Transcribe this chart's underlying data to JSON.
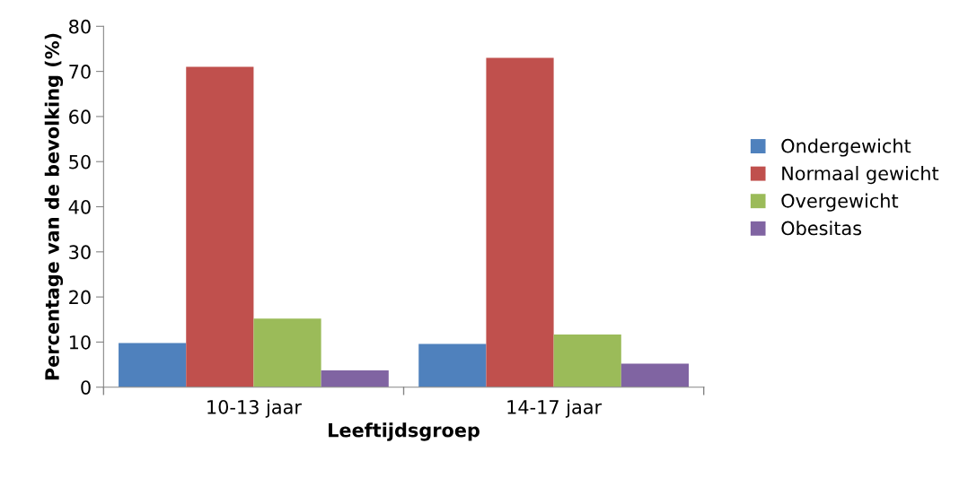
{
  "chart_data": {
    "type": "bar",
    "xlabel": "Leeftijdsgroep",
    "ylabel": "Percentage van de bevolking (%)",
    "categories": [
      "10-13 jaar",
      "14-17 jaar"
    ],
    "series": [
      {
        "name": "Ondergewicht",
        "color": "#4f81bd",
        "values": [
          9.8,
          9.6
        ]
      },
      {
        "name": "Normaal gewicht",
        "color": "#c0504d",
        "values": [
          71,
          73
        ]
      },
      {
        "name": "Overgewicht",
        "color": "#9bbb59",
        "values": [
          15.2,
          11.7
        ]
      },
      {
        "name": "Obesitas",
        "color": "#8064a2",
        "values": [
          3.7,
          5.2
        ]
      }
    ],
    "ylim": [
      0,
      80
    ],
    "yticks": [
      0,
      10,
      20,
      30,
      40,
      50,
      60,
      70,
      80
    ],
    "grid": false,
    "legend": "right"
  }
}
